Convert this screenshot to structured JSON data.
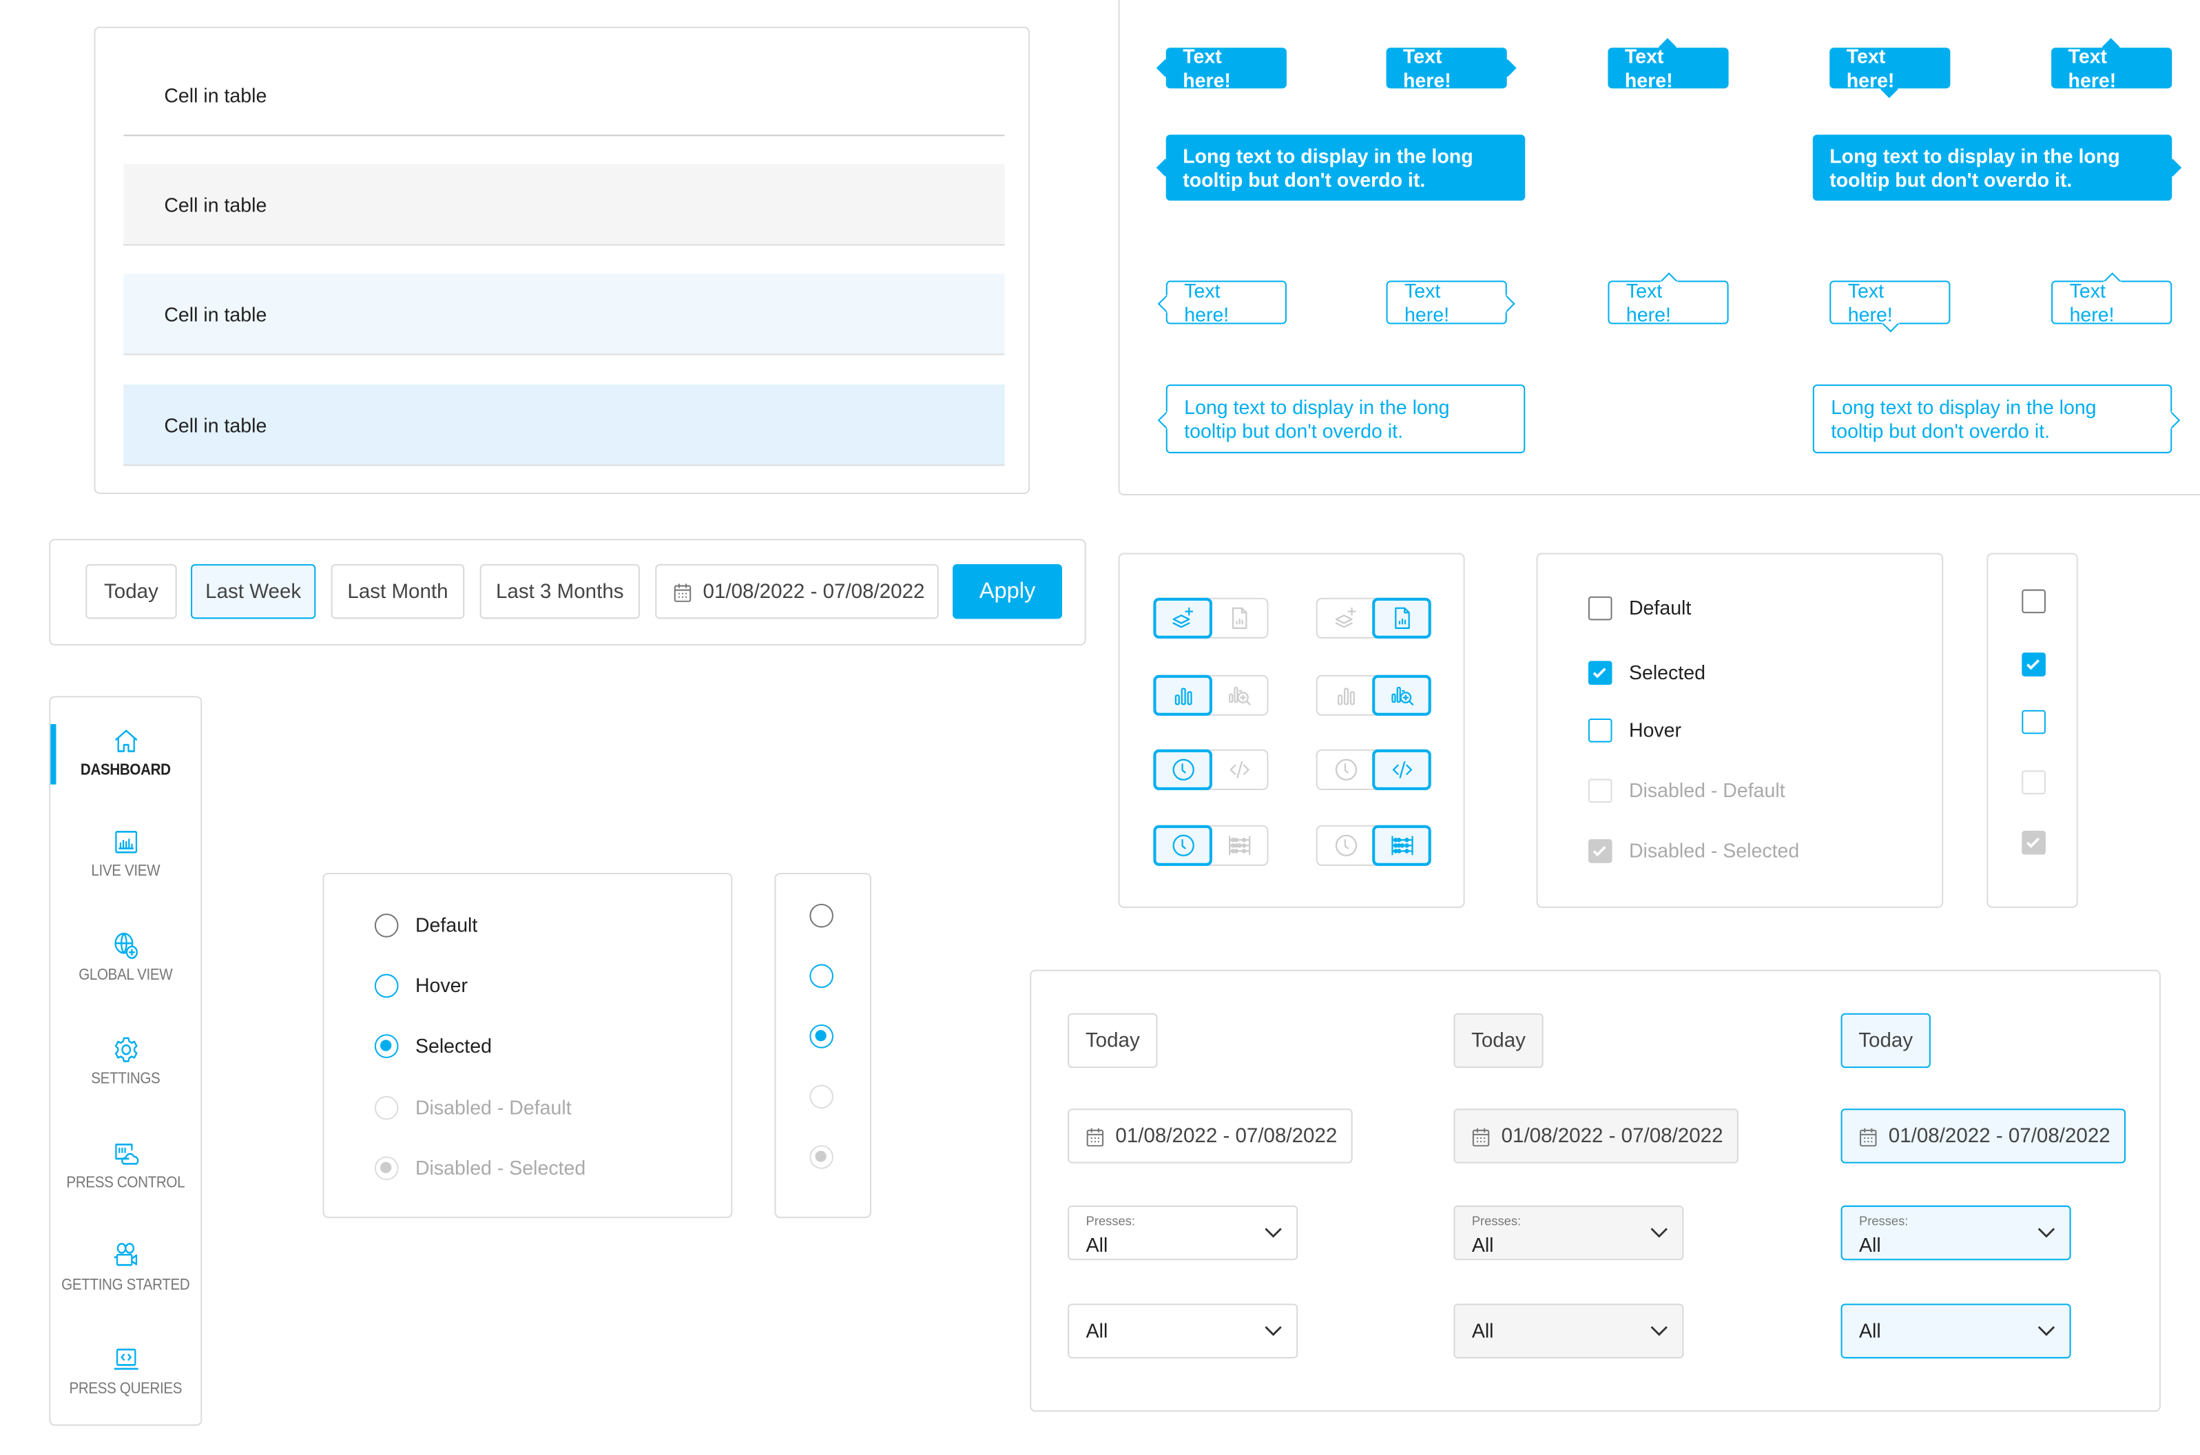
{
  "colors": {
    "accent": "#00aeef",
    "border": "#dcdcdc",
    "hover_bg": "#f5f5f5",
    "selected_bg": "#eef8fe"
  },
  "table": {
    "rows": [
      "Cell in table",
      "Cell in table",
      "Cell in table",
      "Cell in table"
    ],
    "row_states": [
      "default",
      "hover",
      "selected",
      "active"
    ]
  },
  "tooltips": {
    "short_text": "Text here!",
    "long_text": "Long text to display in the long tooltip but don't overdo it.",
    "items": [
      {
        "variant": "filled",
        "arrow": "left",
        "text": "Text here!"
      },
      {
        "variant": "filled",
        "arrow": "right",
        "text": "Text here!"
      },
      {
        "variant": "filled",
        "arrow": "top",
        "text": "Text here!"
      },
      {
        "variant": "filled",
        "arrow": "bottom",
        "text": "Text here!"
      },
      {
        "variant": "filled",
        "arrow": "top-right",
        "text": "Text here!"
      },
      {
        "variant": "filled",
        "arrow": "left",
        "text": "Long text to display in the long tooltip but don't overdo it."
      },
      {
        "variant": "filled",
        "arrow": "right",
        "text": "Long text to display in the long tooltip but don't overdo it."
      },
      {
        "variant": "outline",
        "arrow": "left",
        "text": "Text here!"
      },
      {
        "variant": "outline",
        "arrow": "right",
        "text": "Text here!"
      },
      {
        "variant": "outline",
        "arrow": "top",
        "text": "Text here!"
      },
      {
        "variant": "outline",
        "arrow": "bottom",
        "text": "Text here!"
      },
      {
        "variant": "outline",
        "arrow": "top-right",
        "text": "Text here!"
      },
      {
        "variant": "outline",
        "arrow": "left",
        "text": "Long text to display in the long tooltip but don't overdo it."
      },
      {
        "variant": "outline",
        "arrow": "right",
        "text": "Long text to display in the long tooltip but don't overdo it."
      }
    ]
  },
  "filter_bar": {
    "today": "Today",
    "last_week": "Last Week",
    "last_month": "Last Month",
    "last_3_months": "Last 3 Months",
    "date_range": "01/08/2022 - 07/08/2022",
    "apply": "Apply",
    "selected": "Last Week"
  },
  "sidebar": {
    "items": [
      {
        "label": "DASHBOARD",
        "icon": "home-icon",
        "active": true
      },
      {
        "label": "LIVE VIEW",
        "icon": "live-view-icon"
      },
      {
        "label": "GLOBAL VIEW",
        "icon": "globe-icon"
      },
      {
        "label": "SETTINGS",
        "icon": "gear-icon"
      },
      {
        "label": "PRESS CONTROL",
        "icon": "press-control-icon"
      },
      {
        "label": "GETTING STARTED",
        "icon": "camera-icon"
      },
      {
        "label": "PRESS QUERIES",
        "icon": "laptop-code-icon"
      }
    ]
  },
  "radios": {
    "items": [
      {
        "label": "Default",
        "state": "default"
      },
      {
        "label": "Hover",
        "state": "hover"
      },
      {
        "label": "Selected",
        "state": "sel"
      },
      {
        "label": "Disabled - Default",
        "state": "dis"
      },
      {
        "label": "Disabled - Selected",
        "state": "dissel"
      }
    ]
  },
  "checkboxes": {
    "items": [
      {
        "label": "Default",
        "state": "default"
      },
      {
        "label": "Selected",
        "state": "sel"
      },
      {
        "label": "Hover",
        "state": "hover"
      },
      {
        "label": "Disabled - Default",
        "state": "dis"
      },
      {
        "label": "Disabled - Selected",
        "state": "dissel"
      }
    ]
  },
  "icon_toggles": {
    "rows": [
      {
        "left": "layers-add-icon",
        "right": "report-icon"
      },
      {
        "left": "bar-chart-icon",
        "right": "chart-zoom-icon"
      },
      {
        "left": "clock-icon",
        "right": "code-icon"
      },
      {
        "left": "clock-icon",
        "right": "abacus-icon"
      }
    ],
    "group_active": [
      "left",
      "right"
    ]
  },
  "form_states": {
    "columns": [
      {
        "state": "default",
        "today": "Today",
        "date_range": "01/08/2022 - 07/08/2022",
        "select_label": "Presses:",
        "select_value": "All",
        "select2_value": "All"
      },
      {
        "state": "hover",
        "today": "Today",
        "date_range": "01/08/2022 - 07/08/2022",
        "select_label": "Presses:",
        "select_value": "All",
        "select2_value": "All"
      },
      {
        "state": "focus",
        "today": "Today",
        "date_range": "01/08/2022 - 07/08/2022",
        "select_label": "Presses:",
        "select_value": "All",
        "select2_value": "All"
      }
    ]
  }
}
